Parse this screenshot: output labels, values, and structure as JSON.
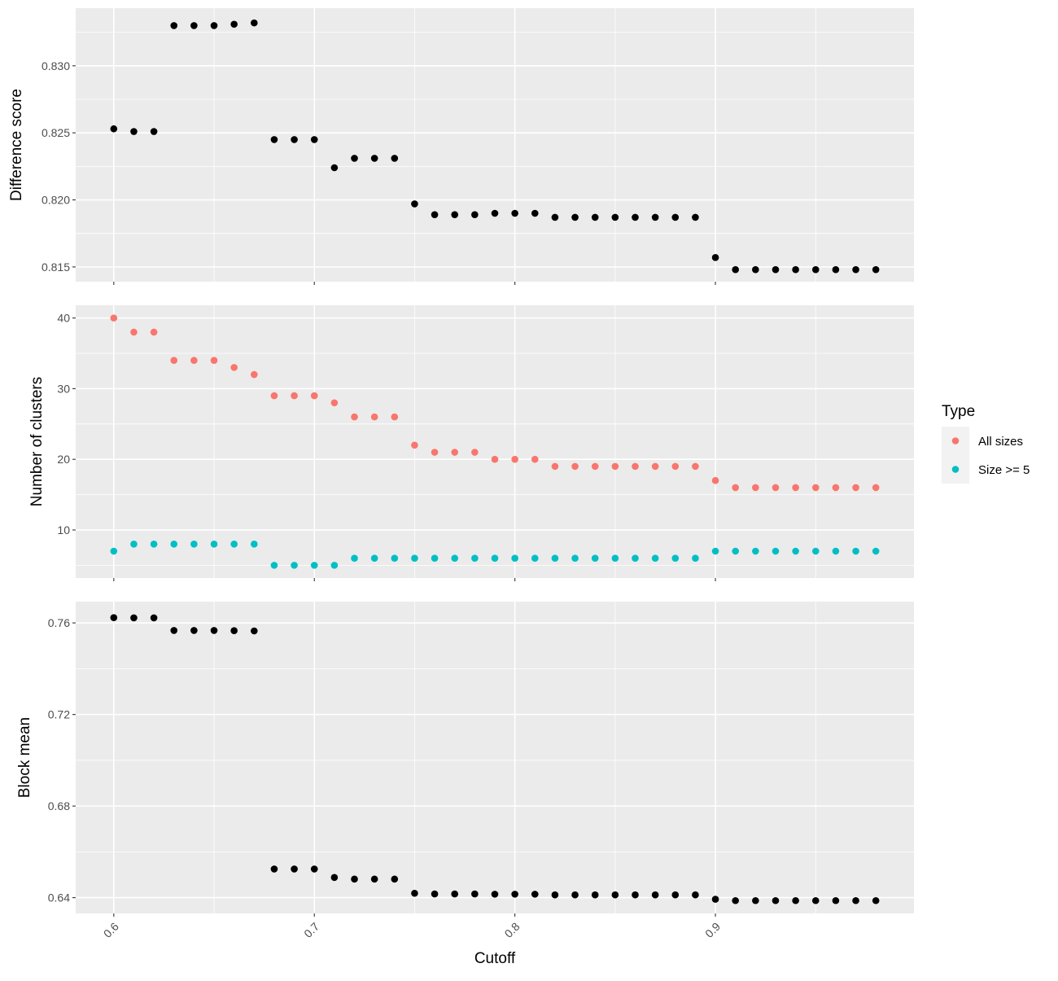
{
  "chart_data": {
    "type": "scatter",
    "xlabel": "Cutoff",
    "x_ticks": [
      "0.6",
      "0.7",
      "0.8",
      "0.9"
    ],
    "x_tick_values": [
      0.6,
      0.7,
      0.8,
      0.9
    ],
    "xlim": [
      0.581,
      0.999
    ],
    "grid": true,
    "legend": {
      "title": "Type",
      "placement": "right",
      "entries": [
        {
          "label": "All sizes",
          "color": "#F8766D"
        },
        {
          "label": "Size >= 5",
          "color": "#00BFC4"
        }
      ]
    },
    "x": [
      0.6,
      0.61,
      0.62,
      0.63,
      0.64,
      0.65,
      0.66,
      0.67,
      0.68,
      0.69,
      0.7,
      0.71,
      0.72,
      0.73,
      0.74,
      0.75,
      0.76,
      0.77,
      0.78,
      0.79,
      0.8,
      0.81,
      0.82,
      0.83,
      0.84,
      0.85,
      0.86,
      0.87,
      0.88,
      0.89,
      0.9,
      0.91,
      0.92,
      0.93,
      0.94,
      0.95,
      0.96,
      0.97,
      0.98
    ],
    "panels": [
      {
        "ylabel": "Difference score",
        "ylim": [
          0.8139,
          0.8343
        ],
        "y_ticks": [
          "0.815",
          "0.820",
          "0.825",
          "0.830"
        ],
        "y_tick_values": [
          0.815,
          0.82,
          0.825,
          0.83
        ],
        "series": [
          {
            "color": "#000000",
            "values": [
              0.8253,
              0.8251,
              0.8251,
              0.833,
              0.833,
              0.833,
              0.8331,
              0.8332,
              0.8245,
              0.8245,
              0.8245,
              0.8224,
              0.8231,
              0.8231,
              0.8231,
              0.8197,
              0.8189,
              0.8189,
              0.8189,
              0.819,
              0.819,
              0.819,
              0.8187,
              0.8187,
              0.8187,
              0.8187,
              0.8187,
              0.8187,
              0.8187,
              0.8187,
              0.8157,
              0.8148,
              0.8148,
              0.8148,
              0.8148,
              0.8148,
              0.8148,
              0.8148,
              0.8148
            ]
          }
        ]
      },
      {
        "ylabel": "Number of clusters",
        "ylim": [
          3.2,
          41.8
        ],
        "y_ticks": [
          "10",
          "20",
          "30",
          "40"
        ],
        "y_tick_values": [
          10,
          20,
          30,
          40
        ],
        "series": [
          {
            "name": "All sizes",
            "color": "#F8766D",
            "values": [
              40,
              38,
              38,
              34,
              34,
              34,
              33,
              32,
              29,
              29,
              29,
              28,
              26,
              26,
              26,
              22,
              21,
              21,
              21,
              20,
              20,
              20,
              19,
              19,
              19,
              19,
              19,
              19,
              19,
              19,
              17,
              16,
              16,
              16,
              16,
              16,
              16,
              16,
              16
            ]
          },
          {
            "name": "Size >= 5",
            "color": "#00BFC4",
            "values": [
              7,
              8,
              8,
              8,
              8,
              8,
              8,
              8,
              5,
              5,
              5,
              5,
              6,
              6,
              6,
              6,
              6,
              6,
              6,
              6,
              6,
              6,
              6,
              6,
              6,
              6,
              6,
              6,
              6,
              6,
              7,
              7,
              7,
              7,
              7,
              7,
              7,
              7,
              7
            ]
          }
        ]
      },
      {
        "ylabel": "Block mean",
        "ylim": [
          0.6331,
          0.7693
        ],
        "y_ticks": [
          "0.64",
          "0.68",
          "0.72",
          "0.76"
        ],
        "y_tick_values": [
          0.64,
          0.68,
          0.72,
          0.76
        ],
        "series": [
          {
            "color": "#000000",
            "values": [
              0.7623,
              0.7622,
              0.7622,
              0.7567,
              0.7567,
              0.7567,
              0.7566,
              0.7565,
              0.6525,
              0.6525,
              0.6525,
              0.6488,
              0.6481,
              0.6481,
              0.6481,
              0.6419,
              0.6416,
              0.6416,
              0.6416,
              0.6415,
              0.6415,
              0.6415,
              0.6412,
              0.6412,
              0.6412,
              0.6412,
              0.6412,
              0.6412,
              0.6412,
              0.6412,
              0.6393,
              0.6387,
              0.6387,
              0.6387,
              0.6387,
              0.6387,
              0.6387,
              0.6387,
              0.6387
            ]
          }
        ]
      }
    ]
  }
}
